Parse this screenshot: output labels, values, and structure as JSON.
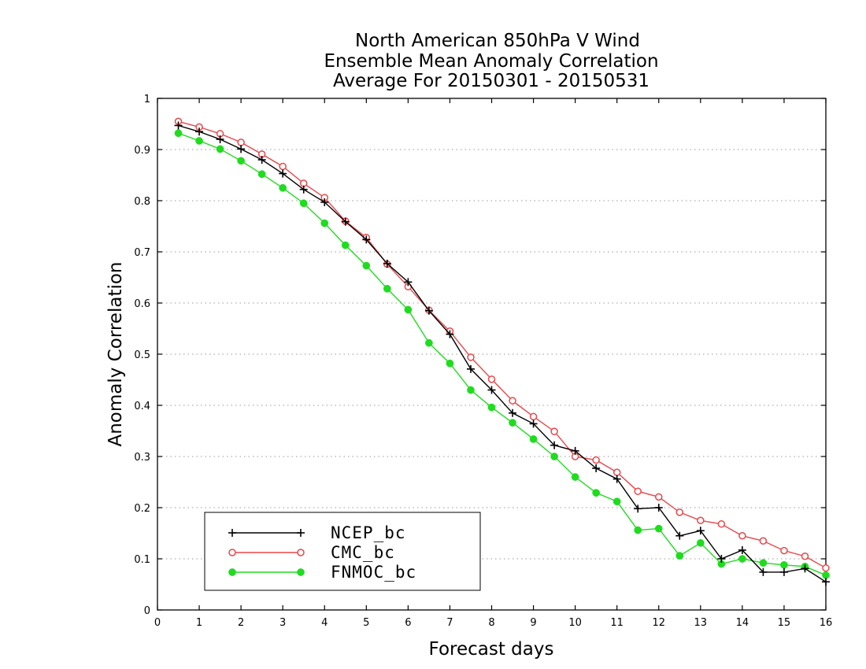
{
  "chart_data": {
    "type": "line",
    "title_lines": [
      "North American 850hPa V Wind",
      "Ensemble Mean Anomaly Correlation",
      "Average For 20150301 - 20150531"
    ],
    "xlabel": "Forecast days",
    "ylabel": "Anomaly Correlation",
    "xlim": [
      0,
      16
    ],
    "ylim": [
      0,
      1
    ],
    "x_ticks": [
      0,
      1,
      2,
      3,
      4,
      5,
      6,
      7,
      8,
      9,
      10,
      11,
      12,
      13,
      14,
      15,
      16
    ],
    "y_ticks": [
      0,
      0.1,
      0.2,
      0.3,
      0.4,
      0.5,
      0.6,
      0.7,
      0.8,
      0.9,
      1
    ],
    "y_tick_labels": [
      "0",
      "0.1",
      "0.2",
      "0.3",
      "0.4",
      "0.5",
      "0.6",
      "0.7",
      "0.8",
      "0.9",
      "1"
    ],
    "grid": "horizontal-dotted",
    "legend_position": "bottom-left",
    "x": [
      0.5,
      1,
      1.5,
      2,
      2.5,
      3,
      3.5,
      4,
      4.5,
      5,
      5.5,
      6,
      6.5,
      7,
      7.5,
      8,
      8.5,
      9,
      9.5,
      10,
      10.5,
      11,
      11.5,
      12,
      12.5,
      13,
      13.5,
      14,
      14.5,
      15,
      15.5,
      16
    ],
    "series": [
      {
        "name": "NCEP_bc",
        "color": "#000000",
        "marker": "plus",
        "values": [
          0.947,
          0.935,
          0.92,
          0.901,
          0.88,
          0.853,
          0.822,
          0.797,
          0.759,
          0.724,
          0.677,
          0.641,
          0.585,
          0.539,
          0.471,
          0.43,
          0.385,
          0.364,
          0.322,
          0.311,
          0.277,
          0.256,
          0.198,
          0.2,
          0.145,
          0.155,
          0.1,
          0.117,
          0.074,
          0.074,
          0.081,
          0.055
        ]
      },
      {
        "name": "CMC_bc",
        "color": "#e8464a",
        "marker": "open-circle",
        "values": [
          0.955,
          0.944,
          0.931,
          0.914,
          0.891,
          0.867,
          0.834,
          0.806,
          0.76,
          0.728,
          0.676,
          0.632,
          0.586,
          0.545,
          0.494,
          0.451,
          0.409,
          0.378,
          0.349,
          0.3,
          0.293,
          0.269,
          0.232,
          0.221,
          0.191,
          0.175,
          0.168,
          0.145,
          0.135,
          0.116,
          0.105,
          0.082
        ]
      },
      {
        "name": "FNMOC_bc",
        "color": "#1fdc1f",
        "marker": "filled-circle",
        "values": [
          0.932,
          0.917,
          0.901,
          0.878,
          0.852,
          0.825,
          0.795,
          0.756,
          0.713,
          0.673,
          0.628,
          0.587,
          0.522,
          0.482,
          0.43,
          0.396,
          0.366,
          0.334,
          0.3,
          0.26,
          0.229,
          0.212,
          0.156,
          0.159,
          0.106,
          0.131,
          0.09,
          0.1,
          0.092,
          0.088,
          0.085,
          0.068
        ]
      }
    ]
  }
}
